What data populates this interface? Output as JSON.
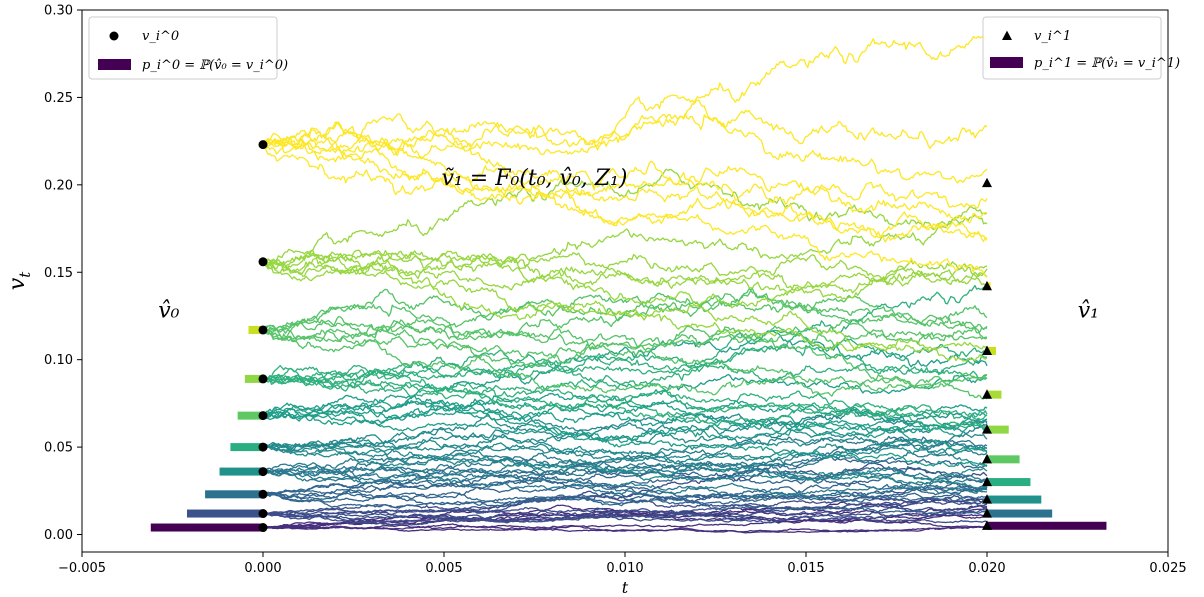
{
  "chart_data": {
    "type": "line",
    "title": "",
    "xlabel": "t",
    "ylabel": "v_t",
    "xlim": [
      -0.005,
      0.025
    ],
    "ylim": [
      -0.01,
      0.3
    ],
    "xticks": [
      -0.005,
      0.0,
      0.005,
      0.01,
      0.015,
      0.02,
      0.025
    ],
    "xtick_labels": [
      "−0.005",
      "0.000",
      "0.005",
      "0.010",
      "0.015",
      "0.020",
      "0.025"
    ],
    "yticks": [
      0.0,
      0.05,
      0.1,
      0.15,
      0.2,
      0.25,
      0.3
    ],
    "ytick_labels": [
      "0.00",
      "0.05",
      "0.10",
      "0.15",
      "0.20",
      "0.25",
      "0.30"
    ],
    "grid": false,
    "colormap": "viridis",
    "t0": 0.0,
    "t1": 0.02,
    "quantization_0": {
      "values": [
        0.004,
        0.012,
        0.023,
        0.036,
        0.05,
        0.068,
        0.089,
        0.117,
        0.156,
        0.223
      ],
      "probabilities": [
        0.31,
        0.21,
        0.16,
        0.12,
        0.09,
        0.07,
        0.05,
        0.04,
        0.0,
        0.0
      ]
    },
    "quantization_1": {
      "values": [
        0.005,
        0.012,
        0.02,
        0.03,
        0.043,
        0.06,
        0.08,
        0.105,
        0.142,
        0.201
      ],
      "probabilities": [
        0.33,
        0.18,
        0.15,
        0.12,
        0.09,
        0.06,
        0.04,
        0.025,
        0.01,
        0.0
      ]
    },
    "colors": {
      "bar0": [
        "#440154",
        "#3b528b",
        "#2c728e",
        "#21918c",
        "#28ae80",
        "#5ec962",
        "#8fd744",
        "#c8e020",
        "#fde725",
        "#fde725"
      ],
      "bar1": [
        "#440154",
        "#2c728e",
        "#21918c",
        "#28ae80",
        "#5ec962",
        "#8fd744",
        "#a8db34",
        "#c8e020",
        "#fde725",
        "#fde725"
      ]
    },
    "paths_per_start": 8,
    "annotations": {
      "formula": "ṽ₁ = F₀(t₀, v̂₀, Z₁)",
      "left": "v̂₀",
      "right": "v̂₁"
    },
    "legend_left": {
      "placement": "upper-left",
      "items": [
        "v_i^0",
        "p_i^0 = ℙ(v̂₀ = v_i^0)"
      ]
    },
    "legend_right": {
      "placement": "upper-right",
      "items": [
        "v_i^1",
        "p_i^1 = ℙ(v̂₁ = v_i^1)"
      ]
    }
  }
}
